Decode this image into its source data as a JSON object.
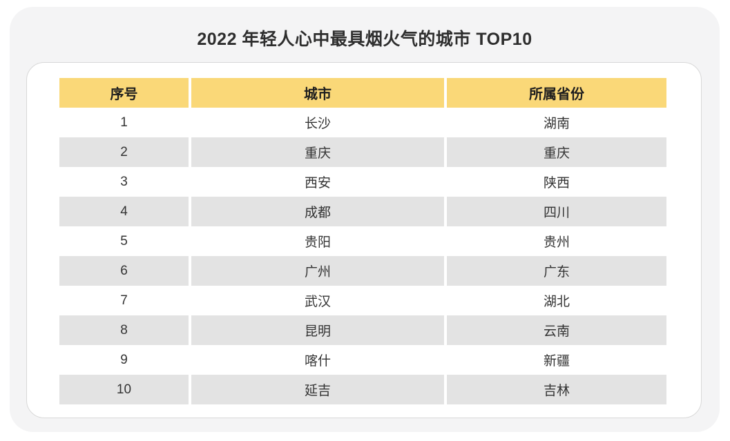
{
  "chart_data": {
    "type": "table",
    "title": "2022 年轻人心中最具烟火气的城市 TOP10",
    "columns": [
      "序号",
      "城市",
      "所属省份"
    ],
    "rows": [
      [
        "1",
        "长沙",
        "湖南"
      ],
      [
        "2",
        "重庆",
        "重庆"
      ],
      [
        "3",
        "西安",
        "陕西"
      ],
      [
        "4",
        "成都",
        "四川"
      ],
      [
        "5",
        "贵阳",
        "贵州"
      ],
      [
        "6",
        "广州",
        "广东"
      ],
      [
        "7",
        "武汉",
        "湖北"
      ],
      [
        "8",
        "昆明",
        "云南"
      ],
      [
        "9",
        "喀什",
        "新疆"
      ],
      [
        "10",
        "延吉",
        "吉林"
      ]
    ],
    "layout": {
      "header_position": "top",
      "zebra_striping": true,
      "text_align": "center"
    }
  },
  "colors": {
    "header_bg": "#FAD878",
    "row_alt_bg": "#E3E3E3",
    "row_bg": "#FFFFFF",
    "card_bg": "#FFFFFF",
    "card_border": "#D8D8D8",
    "page_bg": "#F4F4F5",
    "title_text": "#2E2E2E",
    "header_text": "#1E1E1E",
    "cell_text": "#333333"
  }
}
